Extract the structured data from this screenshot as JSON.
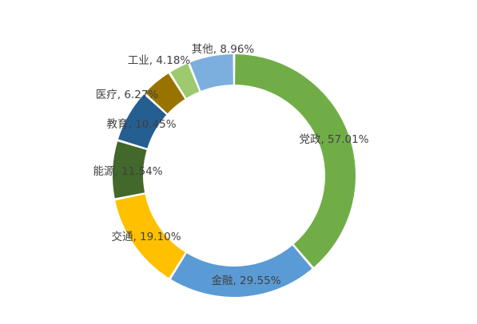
{
  "chart_data": {
    "type": "pie",
    "variant": "donut",
    "title": "",
    "categories": [
      "党政",
      "金融",
      "交通",
      "能源",
      "教育",
      "医疗",
      "工业",
      "其他"
    ],
    "values": [
      57.01,
      29.55,
      19.1,
      11.54,
      10.45,
      6.27,
      4.18,
      8.96
    ],
    "labels": [
      "党政, 57.01%",
      "金融, 29.55%",
      "交通, 19.10%",
      "能源, 11.54%",
      "教育, 10.45%",
      "医疗, 6.27%",
      "工业, 4.18%",
      "其他, 8.96%"
    ],
    "colors": [
      "#70AD47",
      "#5B9BD5",
      "#FFC000",
      "#43682B",
      "#255E91",
      "#997300",
      "#9DC96F",
      "#7CAFDD"
    ],
    "legend": "none",
    "start_angle_deg": 0,
    "direction": "clockwise"
  }
}
